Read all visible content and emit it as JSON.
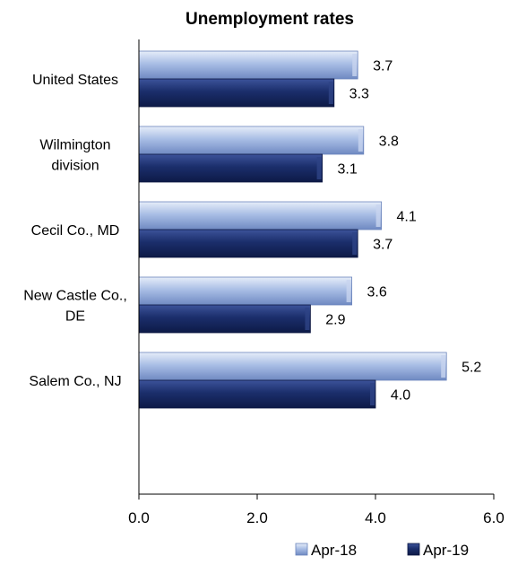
{
  "chart_data": {
    "type": "bar",
    "orientation": "horizontal",
    "title": "Unemployment rates",
    "categories": [
      [
        "United States"
      ],
      [
        "Wilmington",
        "division"
      ],
      [
        "Cecil Co., MD"
      ],
      [
        "New Castle Co.,",
        "DE"
      ],
      [
        "Salem Co., NJ"
      ]
    ],
    "series": [
      {
        "name": "Apr-18",
        "values": [
          3.7,
          3.8,
          4.1,
          3.6,
          5.2
        ],
        "labels": [
          "3.7",
          "3.8",
          "4.1",
          "3.6",
          "5.2"
        ],
        "color": "#9db3de"
      },
      {
        "name": "Apr-19",
        "values": [
          3.3,
          3.1,
          3.7,
          2.9,
          4.0
        ],
        "labels": [
          "3.3",
          "3.1",
          "3.7",
          "2.9",
          "4.0"
        ],
        "color": "#1b2e6b"
      }
    ],
    "xlim": [
      0,
      6
    ],
    "xticks": [
      "0.0",
      "2.0",
      "4.0",
      "6.0"
    ],
    "xtick_values": [
      0,
      2,
      4,
      6
    ],
    "grid": false,
    "legend_position": "bottom-right"
  }
}
